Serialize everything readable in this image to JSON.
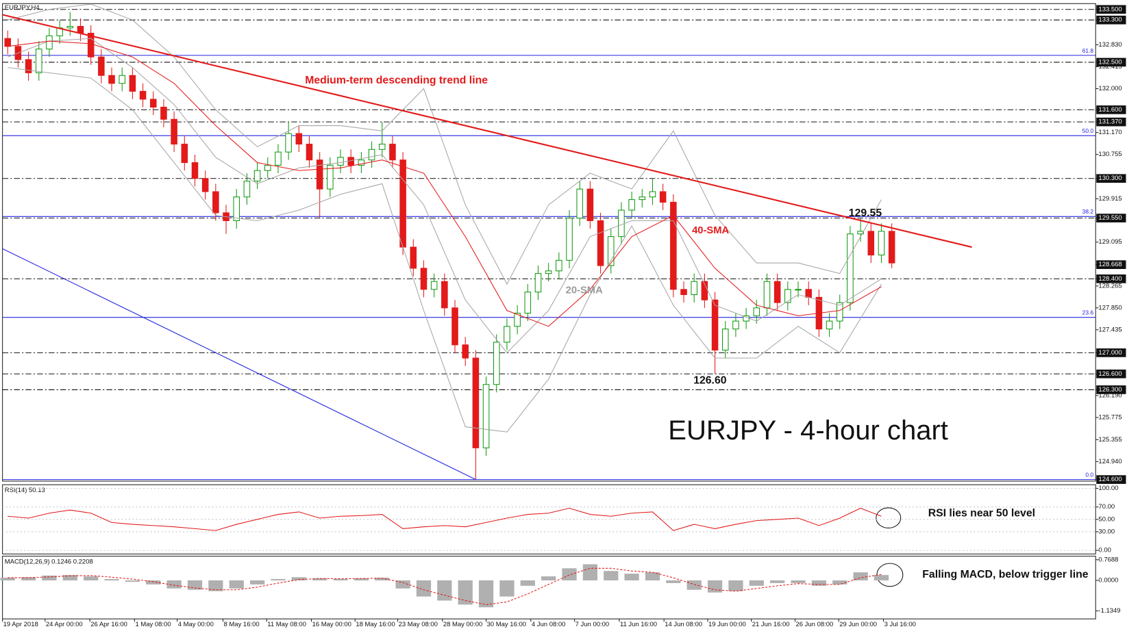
{
  "chart_data": [
    {
      "type": "candlestick",
      "title": "EURJPY,H4",
      "open": [
        132.95,
        132.8,
        132.55,
        132.3,
        132.75,
        133.0,
        133.15,
        133.18,
        133.05,
        132.6,
        132.25,
        132.1,
        132.25,
        131.95,
        131.8,
        131.65,
        131.42,
        130.95,
        130.6,
        130.3,
        130.05,
        129.65,
        129.5,
        129.95,
        130.25,
        130.45,
        130.55,
        130.8,
        131.15,
        130.95,
        130.65,
        130.1,
        130.55,
        130.7,
        130.55,
        130.65,
        130.85,
        130.95,
        130.65,
        129.0,
        128.6,
        128.2,
        128.35,
        127.85,
        127.15,
        126.9,
        125.2,
        126.4,
        127.2,
        127.5,
        127.75,
        128.15,
        128.5,
        128.55,
        128.75,
        129.55,
        130.1,
        129.5,
        128.65,
        129.2,
        129.7,
        129.9,
        129.95,
        130.05,
        129.85,
        128.2,
        128.1,
        128.35,
        128.0,
        127.05,
        127.45,
        127.6,
        127.7,
        127.85,
        128.35,
        127.95,
        128.2,
        128.2,
        128.05,
        127.45,
        127.6,
        127.95,
        129.25,
        129.3,
        128.85,
        129.3
      ],
      "high": [
        133.1,
        132.95,
        132.7,
        132.9,
        133.15,
        133.3,
        133.45,
        133.33,
        133.2,
        132.75,
        132.4,
        132.4,
        132.4,
        132.1,
        131.95,
        131.8,
        131.57,
        131.1,
        130.75,
        130.45,
        130.2,
        129.8,
        130.1,
        130.4,
        130.6,
        130.7,
        130.95,
        131.37,
        131.3,
        131.1,
        130.8,
        130.7,
        130.85,
        130.85,
        130.8,
        131.0,
        131.37,
        131.1,
        130.8,
        129.15,
        128.75,
        128.5,
        128.5,
        128.0,
        127.3,
        127.05,
        126.55,
        127.35,
        127.65,
        127.9,
        128.3,
        128.65,
        128.7,
        128.9,
        129.7,
        130.25,
        130.25,
        129.65,
        129.35,
        129.85,
        130.05,
        130.1,
        130.3,
        130.2,
        130.0,
        128.35,
        128.5,
        128.5,
        128.15,
        127.6,
        127.75,
        127.85,
        128.0,
        128.5,
        128.5,
        128.35,
        128.35,
        128.35,
        128.2,
        127.75,
        128.1,
        129.4,
        129.55,
        129.45,
        129.45,
        129.45
      ],
      "low": [
        132.65,
        132.4,
        132.15,
        132.15,
        132.6,
        132.85,
        133.0,
        132.9,
        132.45,
        132.1,
        131.95,
        131.95,
        131.8,
        131.65,
        131.5,
        131.27,
        130.8,
        130.45,
        130.15,
        129.9,
        129.5,
        129.25,
        129.35,
        129.8,
        130.1,
        130.3,
        130.4,
        130.65,
        130.8,
        130.5,
        129.55,
        129.95,
        130.4,
        130.4,
        130.4,
        130.5,
        130.7,
        130.5,
        128.85,
        128.45,
        128.05,
        128.05,
        127.7,
        127.0,
        126.75,
        124.6,
        125.05,
        126.25,
        127.05,
        127.35,
        127.6,
        128.0,
        128.35,
        128.4,
        128.6,
        129.4,
        129.35,
        128.5,
        128.5,
        129.05,
        129.55,
        129.75,
        129.8,
        129.7,
        128.05,
        127.95,
        127.95,
        127.85,
        126.6,
        126.9,
        127.3,
        127.45,
        127.55,
        127.7,
        127.8,
        127.8,
        128.05,
        127.9,
        127.3,
        127.3,
        127.45,
        127.8,
        129.1,
        128.7,
        128.7,
        128.6
      ],
      "close": [
        132.8,
        132.55,
        132.3,
        132.75,
        133.0,
        133.15,
        133.18,
        133.05,
        132.6,
        132.25,
        132.1,
        132.25,
        131.95,
        131.8,
        131.65,
        131.42,
        130.95,
        130.6,
        130.3,
        130.05,
        129.65,
        129.5,
        129.95,
        130.25,
        130.45,
        130.55,
        130.8,
        131.15,
        130.95,
        130.65,
        130.1,
        130.55,
        130.7,
        130.55,
        130.65,
        130.85,
        130.95,
        130.65,
        129.0,
        128.6,
        128.2,
        128.35,
        127.85,
        127.15,
        126.9,
        125.2,
        126.4,
        127.2,
        127.5,
        127.75,
        128.15,
        128.5,
        128.55,
        128.75,
        129.55,
        130.1,
        129.5,
        128.65,
        129.2,
        129.7,
        129.9,
        129.95,
        130.05,
        129.85,
        128.2,
        128.1,
        128.35,
        128.0,
        127.05,
        127.45,
        127.6,
        127.7,
        127.85,
        128.35,
        127.95,
        128.2,
        128.2,
        128.05,
        127.45,
        127.6,
        127.95,
        129.25,
        129.3,
        128.85,
        129.3,
        128.7
      ],
      "up_color": "#119a11",
      "down_color": "#e31a1a",
      "xlim": [
        -0.5,
        104.6
      ],
      "ylim": [
        124.57,
        133.61
      ],
      "xticks": [
        {
          "value": -0.5,
          "label": "19 Apr 2018"
        },
        {
          "value": 3.6,
          "label": "24 Apr 00:00"
        },
        {
          "value": 7.9,
          "label": "26 Apr 16:00"
        },
        {
          "value": 12.2,
          "label": "1 May 08:00"
        },
        {
          "value": 16.3,
          "label": "4 May 00:00"
        },
        {
          "value": 20.7,
          "label": "8 May 16:00"
        },
        {
          "value": 24.9,
          "label": "11 May 08:00"
        },
        {
          "value": 29.2,
          "label": "16 May 00:00"
        },
        {
          "value": 33.4,
          "label": "18 May 16:00"
        },
        {
          "value": 37.5,
          "label": "23 May 08:00"
        },
        {
          "value": 41.8,
          "label": "28 May 00:00"
        },
        {
          "value": 46.0,
          "label": "30 May 16:00"
        },
        {
          "value": 50.3,
          "label": "4 Jun 08:00"
        },
        {
          "value": 54.5,
          "label": "7 Jun 00:00"
        },
        {
          "value": 58.8,
          "label": "11 Jun 16:00"
        },
        {
          "value": 63.1,
          "label": "14 Jun 08:00"
        },
        {
          "value": 67.3,
          "label": "19 Jun 00:00"
        },
        {
          "value": 71.5,
          "label": "21 Jun 16:00"
        },
        {
          "value": 75.7,
          "label": "26 Jun 08:00"
        },
        {
          "value": 79.9,
          "label": "29 Jun 00:00"
        },
        {
          "value": 84.2,
          "label": "3 Jul 16:00"
        }
      ],
      "yticks": [
        {
          "value": 133.5,
          "label": "133.500",
          "style": "level"
        },
        {
          "value": 133.3,
          "label": "133.300",
          "style": "level"
        },
        {
          "value": 132.83,
          "label": "132.830"
        },
        {
          "value": 132.5,
          "label": "132.500",
          "style": "level"
        },
        {
          "value": 132.415,
          "label": "132.415"
        },
        {
          "value": 132.0,
          "label": "132.000"
        },
        {
          "value": 131.6,
          "label": "131.600",
          "style": "level"
        },
        {
          "value": 131.37,
          "label": "131.370",
          "style": "level"
        },
        {
          "value": 131.17,
          "label": "131.170"
        },
        {
          "value": 130.755,
          "label": "130.755"
        },
        {
          "value": 130.3,
          "label": "130.300",
          "style": "level"
        },
        {
          "value": 129.915,
          "label": "129.915"
        },
        {
          "value": 129.55,
          "label": "129.550",
          "style": "level"
        },
        {
          "value": 129.095,
          "label": "129.095"
        },
        {
          "value": 128.668,
          "label": "128.668",
          "style": "box"
        },
        {
          "value": 128.4,
          "label": "128.400",
          "style": "level"
        },
        {
          "value": 128.265,
          "label": "128.265"
        },
        {
          "value": 127.85,
          "label": "127.850"
        },
        {
          "value": 127.435,
          "label": "127.435"
        },
        {
          "value": 127.0,
          "label": "127.000",
          "style": "level"
        },
        {
          "value": 126.6,
          "label": "126.600",
          "style": "level"
        },
        {
          "value": 126.3,
          "label": "126.300",
          "style": "level"
        },
        {
          "value": 126.19,
          "label": "126.190"
        },
        {
          "value": 125.775,
          "label": "125.775"
        },
        {
          "value": 125.355,
          "label": "125.355"
        },
        {
          "value": 124.94,
          "label": "124.940"
        },
        {
          "value": 124.6,
          "label": "124.600",
          "style": "box"
        }
      ],
      "fibonacci": [
        {
          "value": 132.63,
          "label": "61.8"
        },
        {
          "value": 131.11,
          "label": "50.0"
        },
        {
          "value": 129.58,
          "label": "38.2"
        },
        {
          "value": 127.67,
          "label": "23.6"
        },
        {
          "value": 124.6,
          "label": "0.0"
        }
      ],
      "fib_color": "#2323e0",
      "indicators": [
        {
          "color": "#a6a6a6",
          "x": [
            0,
            4,
            8,
            12,
            16,
            20,
            24,
            28,
            32,
            36,
            40,
            44,
            48,
            52,
            56,
            60,
            64,
            68,
            72,
            76,
            80,
            84
          ],
          "values": [
            133.3,
            133.5,
            133.6,
            133.3,
            132.6,
            131.6,
            130.9,
            131.3,
            131.3,
            131.2,
            132.0,
            129.8,
            128.3,
            129.8,
            130.4,
            130.1,
            131.2,
            129.6,
            128.7,
            128.7,
            128.5,
            129.9
          ]
        },
        {
          "color": "#a6a6a6",
          "x": [
            0,
            4,
            8,
            12,
            16,
            20,
            24,
            28,
            32,
            36,
            40,
            44,
            48,
            52,
            56,
            60,
            64,
            68,
            72,
            76,
            80,
            84
          ],
          "values": [
            132.4,
            132.3,
            132.2,
            131.6,
            130.6,
            129.6,
            129.5,
            129.7,
            130.0,
            130.2,
            127.8,
            125.6,
            125.5,
            126.5,
            128.1,
            129.4,
            127.9,
            126.9,
            126.9,
            127.5,
            127.0,
            128.3
          ]
        },
        {
          "color": "#a6a6a6",
          "x": [
            0,
            4,
            8,
            12,
            16,
            20,
            24,
            28,
            32,
            36,
            40,
            44,
            48,
            52,
            56,
            60,
            64,
            68,
            72,
            76,
            80,
            84
          ],
          "values": [
            132.6,
            132.9,
            132.95,
            132.4,
            131.7,
            130.7,
            130.2,
            130.5,
            130.6,
            130.75,
            129.8,
            128.0,
            127.0,
            127.8,
            129.2,
            129.5,
            129.5,
            127.9,
            127.6,
            128.1,
            127.9,
            128.4
          ]
        },
        {
          "color": "#e31a1a",
          "x": [
            0,
            4,
            8,
            12,
            16,
            20,
            24,
            28,
            32,
            36,
            40,
            44,
            48,
            52,
            56,
            60,
            64,
            68,
            72,
            76,
            80,
            84
          ],
          "values": [
            132.8,
            132.9,
            132.85,
            132.6,
            132.1,
            131.3,
            130.6,
            130.45,
            130.5,
            130.65,
            130.4,
            129.2,
            127.8,
            127.5,
            128.2,
            129.2,
            129.6,
            128.6,
            127.9,
            127.7,
            127.8,
            128.25
          ]
        }
      ],
      "trend_lines": [
        {
          "color": "#e31a1a",
          "x": [
            -0.5,
            92.7
          ],
          "values": [
            133.4,
            129.0
          ]
        },
        {
          "color": "#2323e0",
          "x": [
            -0.5,
            45
          ],
          "values": [
            128.97,
            124.6
          ]
        }
      ],
      "annotations": [
        {
          "text": "Medium-term descending trend line",
          "color": "#e31a1a"
        },
        {
          "text": "129.55",
          "color": "#111111"
        },
        {
          "text": "126.60",
          "color": "#111111"
        },
        {
          "text": "40-SMA",
          "color": "#e31a1a"
        },
        {
          "text": "20-SMA",
          "color": "#9a9a9a"
        },
        {
          "text": "EURJPY - 4-hour chart",
          "color": "#111111"
        }
      ]
    },
    {
      "type": "rsi",
      "title": "RSI(14) 50.13",
      "color": "#e31a1a",
      "xlim": [
        -0.5,
        104.6
      ],
      "ylim": [
        -5.8,
        105.8
      ],
      "yticks": [
        {
          "value": 100,
          "label": "100.00"
        },
        {
          "value": 70,
          "label": "70.00"
        },
        {
          "value": 50,
          "label": "50.00"
        },
        {
          "value": 30,
          "label": "30.00"
        },
        {
          "value": 0,
          "label": "0.00"
        }
      ],
      "x": [
        0,
        2,
        4,
        6,
        8,
        10,
        12,
        14,
        16,
        18,
        20,
        22,
        24,
        26,
        28,
        30,
        32,
        34,
        36,
        38,
        40,
        42,
        44,
        46,
        48,
        50,
        52,
        54,
        56,
        58,
        60,
        62,
        64,
        66,
        68,
        70,
        72,
        74,
        76,
        78,
        80,
        82,
        84
      ],
      "values": [
        55,
        52,
        60,
        65,
        60,
        45,
        42,
        40,
        38,
        35,
        32,
        42,
        50,
        58,
        62,
        52,
        55,
        56,
        58,
        35,
        38,
        40,
        38,
        45,
        52,
        58,
        60,
        68,
        58,
        55,
        60,
        62,
        32,
        42,
        35,
        42,
        48,
        50,
        52,
        40,
        52,
        68,
        55
      ],
      "note": "RSI lies near 50 level"
    },
    {
      "type": "macd",
      "title": "MACD(12,26,9) 0.1246 0.2208",
      "hist_color": "#b0b0b0",
      "signal_color": "#e31a1a",
      "xlim": [
        -0.5,
        104.6
      ],
      "ylim": [
        -1.432,
        0.902
      ],
      "yticks": [
        {
          "value": 0.7688,
          "label": "0.7688"
        },
        {
          "value": 0,
          "label": "0.0000"
        },
        {
          "value": -1.1349,
          "label": "-1.1349"
        }
      ],
      "x": [
        0,
        2,
        4,
        6,
        8,
        10,
        12,
        14,
        16,
        18,
        20,
        22,
        24,
        26,
        28,
        30,
        32,
        34,
        36,
        38,
        40,
        42,
        44,
        46,
        48,
        50,
        52,
        54,
        56,
        58,
        60,
        62,
        64,
        66,
        68,
        70,
        72,
        74,
        76,
        78,
        80,
        82,
        84
      ],
      "histogram": [
        0.1,
        0.12,
        0.18,
        0.2,
        0.15,
        0.05,
        -0.05,
        -0.15,
        -0.3,
        -0.35,
        -0.4,
        -0.3,
        -0.15,
        0.05,
        0.12,
        0.08,
        0.05,
        0.08,
        0.1,
        -0.3,
        -0.6,
        -0.75,
        -0.9,
        -1.0,
        -0.6,
        -0.2,
        0.15,
        0.45,
        0.6,
        0.35,
        0.25,
        0.3,
        -0.1,
        -0.35,
        -0.45,
        -0.4,
        -0.2,
        -0.1,
        -0.1,
        -0.2,
        -0.15,
        0.3,
        0.2
      ],
      "signal": [
        0.1,
        0.1,
        0.13,
        0.17,
        0.18,
        0.12,
        0.05,
        -0.05,
        -0.18,
        -0.28,
        -0.35,
        -0.35,
        -0.25,
        -0.1,
        0.03,
        0.07,
        0.06,
        0.07,
        0.08,
        -0.08,
        -0.35,
        -0.55,
        -0.75,
        -0.9,
        -0.8,
        -0.5,
        -0.15,
        0.2,
        0.45,
        0.45,
        0.35,
        0.3,
        0.1,
        -0.15,
        -0.35,
        -0.4,
        -0.3,
        -0.2,
        -0.12,
        -0.15,
        -0.15,
        0.1,
        0.22
      ],
      "note": "Falling MACD, below trigger line"
    }
  ]
}
